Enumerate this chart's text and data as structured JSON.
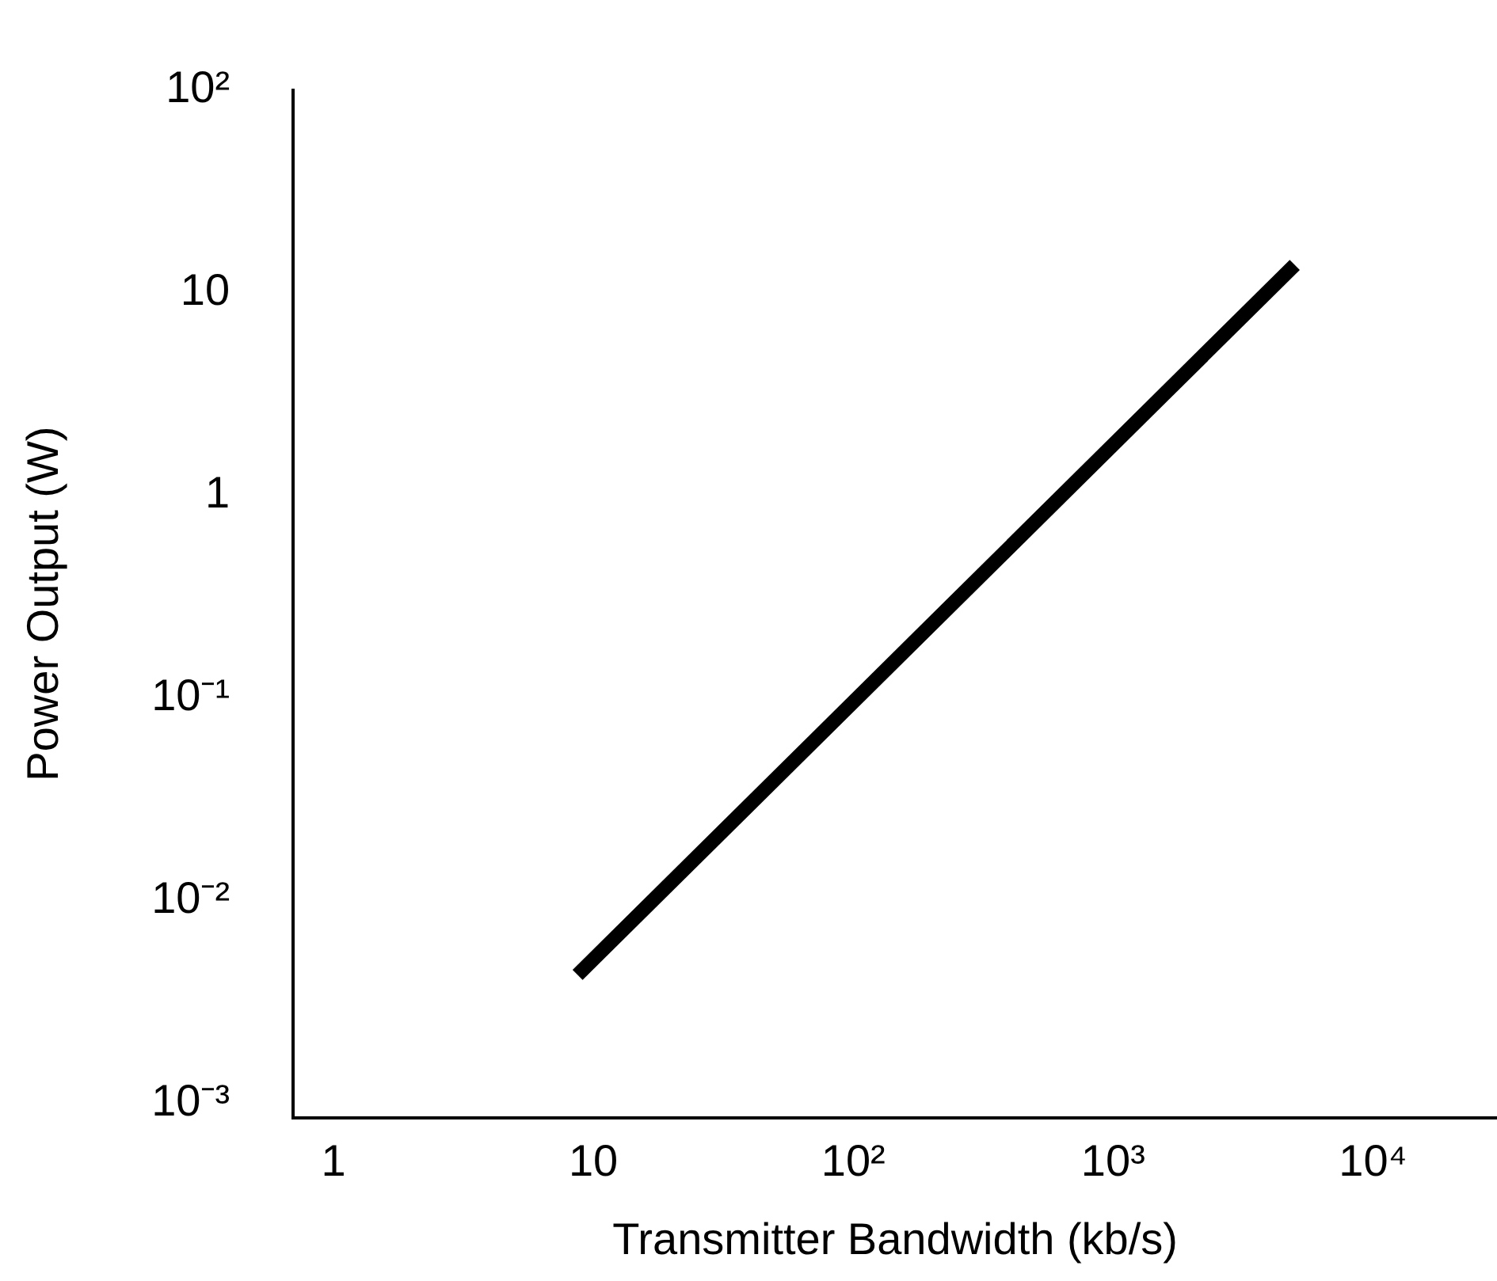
{
  "chart_data": {
    "type": "line",
    "xlabel": "Transmitter Bandwidth (kb/s)",
    "ylabel": "Power Output (W)",
    "log": "xy",
    "grid": false,
    "legend": false,
    "marker": "none",
    "line_style": "solid",
    "x": [
      8.7,
      5000
    ],
    "series": [
      {
        "color": "#000000",
        "values": [
          0.0043,
          13.7
        ]
      }
    ],
    "xlim": [
      0.7,
      30000
    ],
    "xticks": [
      1,
      10,
      {
        "value": 100,
        "label": "10²"
      },
      {
        "value": 1000,
        "label": "10³"
      },
      {
        "value": 10000,
        "label": "10⁴"
      }
    ],
    "ylim": [
      0.00085,
      100
    ],
    "yticks": [
      {
        "value": 0.001,
        "label": "10⁻³"
      },
      {
        "value": 0.01,
        "label": "10⁻²"
      },
      {
        "value": 0.1,
        "label": "10⁻¹"
      },
      1,
      10,
      {
        "value": 100,
        "label": "10²"
      }
    ]
  }
}
